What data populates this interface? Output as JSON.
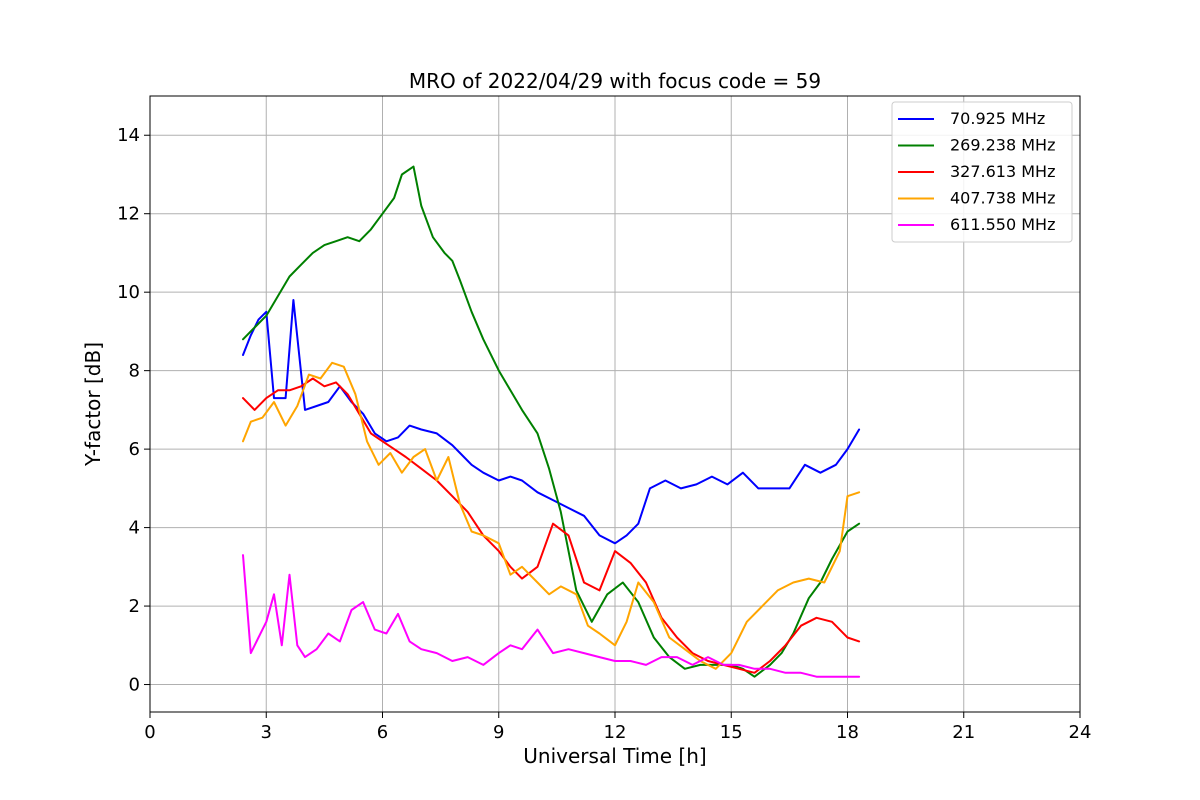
{
  "chart_data": {
    "type": "line",
    "title": "MRO of 2022/04/29 with focus code = 59",
    "xlabel": "Universal Time [h]",
    "ylabel": "Y-factor [dB]",
    "xlim": [
      0,
      24
    ],
    "ylim": [
      -0.7,
      15
    ],
    "xticks": [
      0,
      3,
      6,
      9,
      12,
      15,
      18,
      21,
      24
    ],
    "yticks": [
      0,
      2,
      4,
      6,
      8,
      10,
      12,
      14
    ],
    "xtick_labels": [
      "0",
      "3",
      "6",
      "9",
      "12",
      "15",
      "18",
      "21",
      "24"
    ],
    "ytick_labels": [
      "0",
      "2",
      "4",
      "6",
      "8",
      "10",
      "12",
      "14"
    ],
    "grid": true,
    "legend_position": "top-right",
    "series": [
      {
        "name": " 70.925 MHz",
        "color": "#0000ff",
        "x": [
          2.4,
          2.6,
          2.8,
          3.0,
          3.2,
          3.5,
          3.7,
          4.0,
          4.3,
          4.6,
          4.9,
          5.2,
          5.5,
          5.8,
          6.1,
          6.4,
          6.7,
          7.0,
          7.4,
          7.8,
          8.0,
          8.3,
          8.6,
          9.0,
          9.3,
          9.6,
          10.0,
          10.4,
          10.8,
          11.2,
          11.6,
          12.0,
          12.3,
          12.6,
          12.9,
          13.3,
          13.7,
          14.1,
          14.5,
          14.9,
          15.3,
          15.7,
          16.1,
          16.5,
          16.9,
          17.3,
          17.7,
          18.0,
          18.3
        ],
        "y": [
          8.4,
          8.9,
          9.3,
          9.5,
          7.3,
          7.3,
          9.8,
          7.0,
          7.1,
          7.2,
          7.6,
          7.2,
          6.9,
          6.4,
          6.2,
          6.3,
          6.6,
          6.5,
          6.4,
          6.1,
          5.9,
          5.6,
          5.4,
          5.2,
          5.3,
          5.2,
          4.9,
          4.7,
          4.5,
          4.3,
          3.8,
          3.6,
          3.8,
          4.1,
          5.0,
          5.2,
          5.0,
          5.1,
          5.3,
          5.1,
          5.4,
          5.0,
          5.0,
          5.0,
          5.6,
          5.4,
          5.6,
          6.0,
          6.5
        ]
      },
      {
        "name": "269.238 MHz",
        "color": "#008000",
        "x": [
          2.4,
          2.7,
          3.0,
          3.3,
          3.6,
          3.9,
          4.2,
          4.5,
          4.8,
          5.1,
          5.4,
          5.7,
          6.0,
          6.3,
          6.5,
          6.8,
          7.0,
          7.3,
          7.6,
          7.8,
          8.0,
          8.3,
          8.6,
          9.0,
          9.3,
          9.6,
          10.0,
          10.3,
          10.6,
          11.0,
          11.4,
          11.8,
          12.2,
          12.6,
          13.0,
          13.4,
          13.8,
          14.2,
          14.6,
          15.0,
          15.3,
          15.6,
          16.0,
          16.3,
          16.6,
          17.0,
          17.3,
          17.6,
          18.0,
          18.3
        ],
        "y": [
          8.8,
          9.1,
          9.4,
          9.9,
          10.4,
          10.7,
          11.0,
          11.2,
          11.3,
          11.4,
          11.3,
          11.6,
          12.0,
          12.4,
          13.0,
          13.2,
          12.2,
          11.4,
          11.0,
          10.8,
          10.3,
          9.5,
          8.8,
          8.0,
          7.5,
          7.0,
          6.4,
          5.5,
          4.4,
          2.4,
          1.6,
          2.3,
          2.6,
          2.1,
          1.2,
          0.7,
          0.4,
          0.5,
          0.5,
          0.5,
          0.4,
          0.2,
          0.5,
          0.8,
          1.3,
          2.2,
          2.6,
          3.2,
          3.9,
          4.1
        ]
      },
      {
        "name": "327.613 MHz",
        "color": "#ff0000",
        "x": [
          2.4,
          2.7,
          3.0,
          3.3,
          3.6,
          3.9,
          4.2,
          4.5,
          4.8,
          5.1,
          5.4,
          5.7,
          6.0,
          6.3,
          6.6,
          7.0,
          7.4,
          7.8,
          8.2,
          8.6,
          9.0,
          9.3,
          9.6,
          10.0,
          10.4,
          10.8,
          11.2,
          11.6,
          12.0,
          12.4,
          12.8,
          13.2,
          13.6,
          14.0,
          14.4,
          14.8,
          15.2,
          15.6,
          16.0,
          16.4,
          16.8,
          17.2,
          17.6,
          18.0,
          18.3
        ],
        "y": [
          7.3,
          7.0,
          7.3,
          7.5,
          7.5,
          7.6,
          7.8,
          7.6,
          7.7,
          7.4,
          6.9,
          6.4,
          6.2,
          6.0,
          5.8,
          5.5,
          5.2,
          4.8,
          4.4,
          3.8,
          3.4,
          3.0,
          2.7,
          3.0,
          4.1,
          3.8,
          2.6,
          2.4,
          3.4,
          3.1,
          2.6,
          1.7,
          1.2,
          0.8,
          0.6,
          0.5,
          0.4,
          0.3,
          0.6,
          1.0,
          1.5,
          1.7,
          1.6,
          1.2,
          1.1
        ]
      },
      {
        "name": "407.738 MHz",
        "color": "#ffa500",
        "x": [
          2.4,
          2.6,
          2.9,
          3.2,
          3.5,
          3.8,
          4.1,
          4.4,
          4.7,
          5.0,
          5.3,
          5.6,
          5.9,
          6.2,
          6.5,
          6.8,
          7.1,
          7.4,
          7.7,
          8.0,
          8.3,
          8.6,
          9.0,
          9.3,
          9.6,
          10.0,
          10.3,
          10.6,
          11.0,
          11.3,
          11.6,
          12.0,
          12.3,
          12.6,
          13.0,
          13.4,
          13.8,
          14.2,
          14.6,
          15.0,
          15.4,
          15.8,
          16.2,
          16.6,
          17.0,
          17.4,
          17.8,
          18.0,
          18.3
        ],
        "y": [
          6.2,
          6.7,
          6.8,
          7.2,
          6.6,
          7.1,
          7.9,
          7.8,
          8.2,
          8.1,
          7.4,
          6.2,
          5.6,
          5.9,
          5.4,
          5.8,
          6.0,
          5.2,
          5.8,
          4.6,
          3.9,
          3.8,
          3.6,
          2.8,
          3.0,
          2.6,
          2.3,
          2.5,
          2.3,
          1.5,
          1.3,
          1.0,
          1.6,
          2.6,
          2.1,
          1.2,
          0.9,
          0.6,
          0.4,
          0.8,
          1.6,
          2.0,
          2.4,
          2.6,
          2.7,
          2.6,
          3.4,
          4.8,
          4.9
        ]
      },
      {
        "name": "611.550 MHz",
        "color": "#ff00ff",
        "x": [
          2.4,
          2.6,
          2.8,
          3.0,
          3.2,
          3.4,
          3.6,
          3.8,
          4.0,
          4.3,
          4.6,
          4.9,
          5.2,
          5.5,
          5.8,
          6.1,
          6.4,
          6.7,
          7.0,
          7.4,
          7.8,
          8.2,
          8.6,
          9.0,
          9.3,
          9.6,
          10.0,
          10.4,
          10.8,
          11.2,
          11.6,
          12.0,
          12.4,
          12.8,
          13.2,
          13.6,
          14.0,
          14.4,
          14.8,
          15.2,
          15.6,
          16.0,
          16.4,
          16.8,
          17.2,
          17.6,
          18.0,
          18.3
        ],
        "y": [
          3.3,
          0.8,
          1.2,
          1.6,
          2.3,
          1.0,
          2.8,
          1.0,
          0.7,
          0.9,
          1.3,
          1.1,
          1.9,
          2.1,
          1.4,
          1.3,
          1.8,
          1.1,
          0.9,
          0.8,
          0.6,
          0.7,
          0.5,
          0.8,
          1.0,
          0.9,
          1.4,
          0.8,
          0.9,
          0.8,
          0.7,
          0.6,
          0.6,
          0.5,
          0.7,
          0.7,
          0.5,
          0.7,
          0.5,
          0.5,
          0.4,
          0.4,
          0.3,
          0.3,
          0.2,
          0.2,
          0.2,
          0.2
        ]
      }
    ]
  }
}
